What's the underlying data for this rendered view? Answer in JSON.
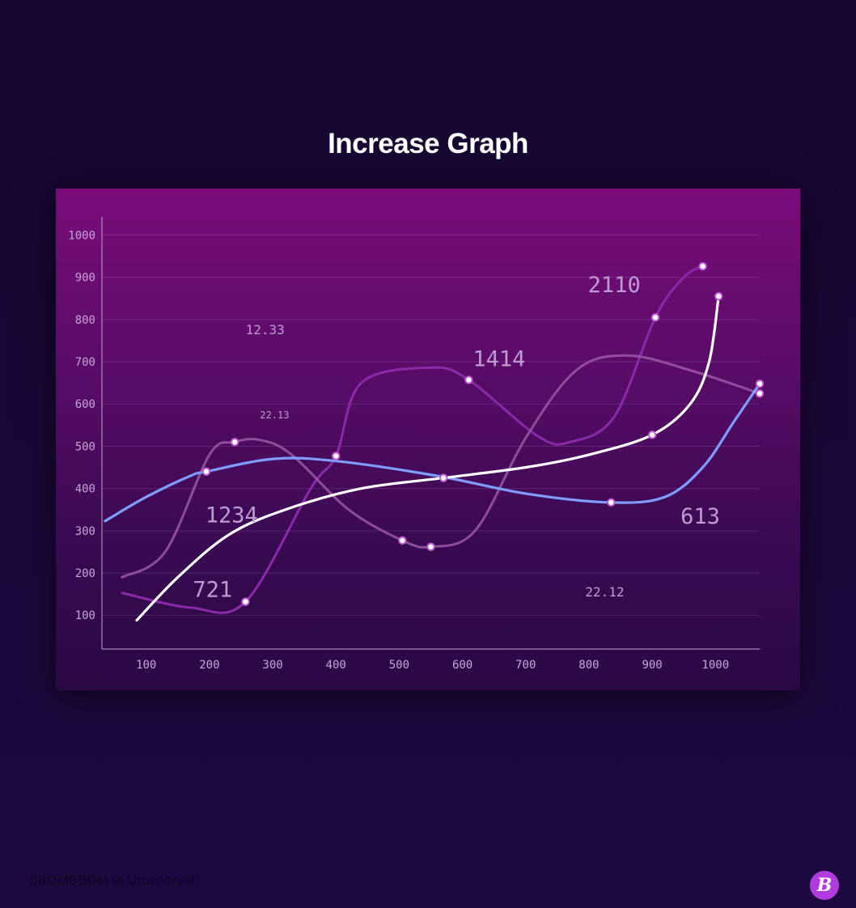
{
  "title": "Increase Graph",
  "credit": "BBOMBBOM in Urbanbrush",
  "brand_logo_letter": "B",
  "chart_data": {
    "type": "line",
    "title": "Increase Graph",
    "xlabel": "",
    "ylabel": "",
    "xlim": [
      30,
      1070
    ],
    "ylim": [
      20,
      1020
    ],
    "x_ticks": [
      100,
      200,
      300,
      400,
      500,
      600,
      700,
      800,
      900,
      1000
    ],
    "y_ticks": [
      100,
      200,
      300,
      400,
      500,
      600,
      700,
      800,
      900,
      1000
    ],
    "grid": true,
    "colors": {
      "blue": "#7f9cff",
      "white": "#ffffff",
      "mauve": "#9a5aa6",
      "violet": "#8a2aa8",
      "marker_fill": "#ffffff",
      "marker_stroke": "#c25ad8"
    },
    "series": [
      {
        "color_key": "violet",
        "points": [
          [
            62,
            153
          ],
          [
            170,
            118
          ],
          [
            257,
            132
          ],
          [
            360,
            400
          ],
          [
            400,
            477
          ],
          [
            440,
            650
          ],
          [
            550,
            686
          ],
          [
            610,
            657
          ],
          [
            720,
            523
          ],
          [
            770,
            510
          ],
          [
            840,
            570
          ],
          [
            905,
            805
          ],
          [
            950,
            900
          ],
          [
            980,
            926
          ]
        ],
        "markers": [
          [
            257,
            132
          ],
          [
            400,
            477
          ],
          [
            610,
            657
          ],
          [
            905,
            805
          ],
          [
            980,
            926
          ]
        ]
      },
      {
        "color_key": "mauve",
        "points": [
          [
            62,
            190
          ],
          [
            130,
            250
          ],
          [
            200,
            480
          ],
          [
            240,
            510
          ],
          [
            280,
            515
          ],
          [
            330,
            480
          ],
          [
            420,
            350
          ],
          [
            505,
            277
          ],
          [
            550,
            262
          ],
          [
            620,
            300
          ],
          [
            700,
            520
          ],
          [
            780,
            680
          ],
          [
            860,
            715
          ],
          [
            960,
            680
          ],
          [
            1070,
            625
          ]
        ],
        "markers": [
          [
            240,
            510
          ],
          [
            505,
            277
          ],
          [
            550,
            262
          ],
          [
            1070,
            625
          ]
        ]
      },
      {
        "color_key": "blue",
        "points": [
          [
            35,
            323
          ],
          [
            100,
            380
          ],
          [
            170,
            430
          ],
          [
            195,
            440
          ],
          [
            300,
            470
          ],
          [
            400,
            465
          ],
          [
            560,
            430
          ],
          [
            700,
            388
          ],
          [
            835,
            367
          ],
          [
            920,
            380
          ],
          [
            980,
            450
          ],
          [
            1030,
            560
          ],
          [
            1070,
            648
          ]
        ],
        "markers": [
          [
            195,
            440
          ],
          [
            570,
            425
          ],
          [
            835,
            367
          ],
          [
            1070,
            648
          ]
        ]
      },
      {
        "color_key": "white",
        "points": [
          [
            85,
            88
          ],
          [
            150,
            190
          ],
          [
            230,
            290
          ],
          [
            320,
            350
          ],
          [
            440,
            400
          ],
          [
            570,
            425
          ],
          [
            700,
            450
          ],
          [
            800,
            480
          ],
          [
            900,
            527
          ],
          [
            960,
            600
          ],
          [
            990,
            700
          ],
          [
            1005,
            855
          ]
        ],
        "markers": [
          [
            570,
            425
          ],
          [
            900,
            527
          ],
          [
            1005,
            855
          ]
        ]
      }
    ],
    "annotations": [
      {
        "text": "12.33",
        "x": 288,
        "y": 765,
        "size": 16
      },
      {
        "text": "22.13",
        "x": 303,
        "y": 566,
        "size": 12
      },
      {
        "text": "1234",
        "x": 235,
        "y": 320,
        "size": 27
      },
      {
        "text": "721",
        "x": 205,
        "y": 144,
        "size": 27
      },
      {
        "text": "1414",
        "x": 658,
        "y": 690,
        "size": 27
      },
      {
        "text": "2110",
        "x": 840,
        "y": 865,
        "size": 27
      },
      {
        "text": "613",
        "x": 976,
        "y": 317,
        "size": 27
      },
      {
        "text": "22.12",
        "x": 825,
        "y": 145,
        "size": 16
      }
    ]
  }
}
